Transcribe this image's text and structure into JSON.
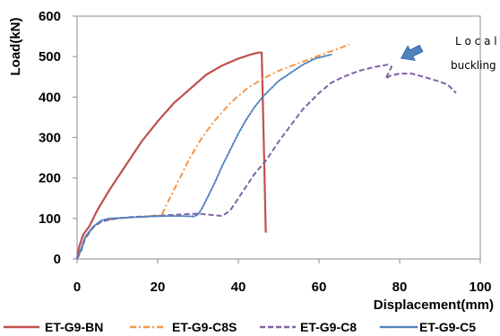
{
  "chart_data": {
    "type": "line",
    "xlabel": "Displacement(mm)",
    "ylabel": "Load(kN)",
    "xlim": [
      0,
      100
    ],
    "ylim": [
      0,
      600
    ],
    "x_ticks": [
      "0",
      "20",
      "40",
      "60",
      "80",
      "100"
    ],
    "y_ticks": [
      "0",
      "100",
      "200",
      "300",
      "400",
      "500",
      "600"
    ],
    "grid": false,
    "legend_position": "bottom",
    "annotation": {
      "line1": "L o c a l",
      "line2": "buckling",
      "target": [
        79,
        478
      ],
      "arrow_color": "#4f81bd"
    },
    "series": [
      {
        "name": "ET-G9-BN",
        "color": "#c0504d",
        "dash": "solid",
        "points": [
          [
            0,
            0
          ],
          [
            0.5,
            30
          ],
          [
            1.5,
            60
          ],
          [
            3,
            80
          ],
          [
            5,
            120
          ],
          [
            8,
            170
          ],
          [
            12,
            230
          ],
          [
            16,
            290
          ],
          [
            20,
            340
          ],
          [
            24,
            385
          ],
          [
            28,
            420
          ],
          [
            32,
            455
          ],
          [
            36,
            478
          ],
          [
            40,
            495
          ],
          [
            43,
            505
          ],
          [
            45,
            510
          ],
          [
            45.8,
            510
          ],
          [
            46,
            420
          ],
          [
            46.5,
            200
          ],
          [
            46.8,
            65
          ]
        ]
      },
      {
        "name": "ET-G9-C8S",
        "color": "#f79646",
        "dash": "dashdot",
        "points": [
          [
            0,
            0
          ],
          [
            1,
            20
          ],
          [
            2,
            50
          ],
          [
            4,
            80
          ],
          [
            6,
            92
          ],
          [
            8,
            97
          ],
          [
            10,
            100
          ],
          [
            14,
            103
          ],
          [
            18,
            106
          ],
          [
            21,
            108
          ],
          [
            22,
            130
          ],
          [
            24,
            170
          ],
          [
            26,
            210
          ],
          [
            28,
            250
          ],
          [
            31,
            300
          ],
          [
            34,
            340
          ],
          [
            38,
            385
          ],
          [
            42,
            420
          ],
          [
            46,
            445
          ],
          [
            50,
            465
          ],
          [
            54,
            480
          ],
          [
            58,
            495
          ],
          [
            62,
            510
          ],
          [
            65,
            520
          ],
          [
            67.5,
            530
          ]
        ]
      },
      {
        "name": "ET-G9-C8",
        "color": "#8064a2",
        "dash": "dash",
        "points": [
          [
            0,
            0
          ],
          [
            1,
            20
          ],
          [
            2,
            50
          ],
          [
            4,
            78
          ],
          [
            6,
            92
          ],
          [
            8,
            97
          ],
          [
            10,
            100
          ],
          [
            14,
            104
          ],
          [
            18,
            105
          ],
          [
            22,
            108
          ],
          [
            26,
            110
          ],
          [
            30,
            112
          ],
          [
            34,
            108
          ],
          [
            36,
            106
          ],
          [
            38,
            120
          ],
          [
            40,
            150
          ],
          [
            42,
            180
          ],
          [
            44,
            210
          ],
          [
            47,
            245
          ],
          [
            50,
            290
          ],
          [
            53,
            330
          ],
          [
            56,
            370
          ],
          [
            60,
            410
          ],
          [
            63,
            435
          ],
          [
            66,
            450
          ],
          [
            70,
            465
          ],
          [
            74,
            475
          ],
          [
            77,
            480
          ],
          [
            78,
            475
          ],
          [
            76.5,
            445
          ],
          [
            77.5,
            452
          ],
          [
            80,
            458
          ],
          [
            83,
            458
          ],
          [
            86,
            450
          ],
          [
            90,
            438
          ],
          [
            92,
            430
          ],
          [
            94,
            410
          ]
        ]
      },
      {
        "name": "ET-G9-C5",
        "color": "#4f81bd",
        "dash": "dot",
        "points": [
          [
            0,
            0
          ],
          [
            1,
            25
          ],
          [
            2,
            55
          ],
          [
            4,
            80
          ],
          [
            6,
            95
          ],
          [
            8,
            100
          ],
          [
            10,
            101
          ],
          [
            14,
            103
          ],
          [
            18,
            105
          ],
          [
            22,
            106
          ],
          [
            26,
            106
          ],
          [
            29,
            105
          ],
          [
            30,
            110
          ],
          [
            31,
            125
          ],
          [
            32,
            145
          ],
          [
            34,
            185
          ],
          [
            36,
            230
          ],
          [
            38,
            270
          ],
          [
            40,
            310
          ],
          [
            42,
            345
          ],
          [
            44,
            375
          ],
          [
            46,
            400
          ],
          [
            48,
            420
          ],
          [
            50,
            440
          ],
          [
            53,
            460
          ],
          [
            56,
            480
          ],
          [
            59,
            495
          ],
          [
            61,
            500
          ],
          [
            63,
            505
          ]
        ]
      }
    ]
  }
}
